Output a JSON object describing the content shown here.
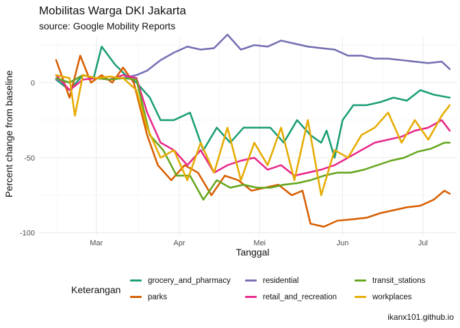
{
  "header": {
    "title": "Mobilitas Warga DKI Jakarta",
    "subtitle": "source: Google Mobility Reports"
  },
  "caption": "ikanx101.github.io",
  "legend": {
    "title": "Keterangan",
    "position": "bottom"
  },
  "chart_data": {
    "type": "line",
    "title": "Mobilitas Warga DKI Jakarta",
    "subtitle": "source: Google Mobility Reports",
    "xlabel": "Tanggal",
    "ylabel": "Percent change from baseline",
    "x_ticks": [
      "Mar",
      "Apr",
      "Mei",
      "Jun",
      "Jul"
    ],
    "x_tick_dates": [
      "2020-03-01",
      "2020-04-01",
      "2020-05-01",
      "2020-06-01",
      "2020-07-01"
    ],
    "x_range": [
      "2020-02-15",
      "2020-07-11"
    ],
    "y_ticks": [
      0,
      -50,
      -100
    ],
    "ylim": [
      -102,
      30
    ],
    "grid": true,
    "series": [
      {
        "name": "grocery_and_pharmacy",
        "color": "#1b9e77",
        "dates": [
          "2020-02-15",
          "2020-02-20",
          "2020-02-25",
          "2020-02-29",
          "2020-03-03",
          "2020-03-08",
          "2020-03-12",
          "2020-03-16",
          "2020-03-21",
          "2020-03-25",
          "2020-03-30",
          "2020-04-05",
          "2020-04-10",
          "2020-04-15",
          "2020-04-20",
          "2020-04-25",
          "2020-04-30",
          "2020-05-05",
          "2020-05-10",
          "2020-05-15",
          "2020-05-20",
          "2020-05-24",
          "2020-05-26",
          "2020-05-29",
          "2020-06-01",
          "2020-06-05",
          "2020-06-10",
          "2020-06-15",
          "2020-06-20",
          "2020-06-25",
          "2020-06-30",
          "2020-07-05",
          "2020-07-11"
        ],
        "values": [
          2,
          -5,
          5,
          3,
          24,
          12,
          5,
          0,
          -10,
          -25,
          -25,
          -20,
          -45,
          -30,
          -40,
          -30,
          -30,
          -30,
          -40,
          -25,
          -35,
          -40,
          -32,
          -50,
          -25,
          -15,
          -15,
          -13,
          -10,
          -12,
          -5,
          -8,
          -10
        ]
      },
      {
        "name": "parks",
        "color": "#d95f02",
        "dates": [
          "2020-02-15",
          "2020-02-20",
          "2020-02-24",
          "2020-02-28",
          "2020-03-03",
          "2020-03-07",
          "2020-03-11",
          "2020-03-15",
          "2020-03-20",
          "2020-03-24",
          "2020-03-29",
          "2020-04-03",
          "2020-04-08",
          "2020-04-13",
          "2020-04-18",
          "2020-04-23",
          "2020-04-28",
          "2020-05-03",
          "2020-05-08",
          "2020-05-13",
          "2020-05-17",
          "2020-05-20",
          "2020-05-25",
          "2020-05-30",
          "2020-06-05",
          "2020-06-10",
          "2020-06-15",
          "2020-06-20",
          "2020-06-25",
          "2020-06-30",
          "2020-07-05",
          "2020-07-09",
          "2020-07-11"
        ],
        "values": [
          15,
          -10,
          18,
          0,
          5,
          0,
          10,
          0,
          -35,
          -55,
          -65,
          -55,
          -60,
          -75,
          -62,
          -65,
          -72,
          -70,
          -68,
          -75,
          -72,
          -94,
          -96,
          -92,
          -91,
          -90,
          -87,
          -85,
          -83,
          -82,
          -78,
          -72,
          -74
        ]
      },
      {
        "name": "residential",
        "color": "#7570b3",
        "dates": [
          "2020-02-15",
          "2020-02-20",
          "2020-02-25",
          "2020-03-01",
          "2020-03-06",
          "2020-03-11",
          "2020-03-16",
          "2020-03-20",
          "2020-03-25",
          "2020-03-30",
          "2020-04-04",
          "2020-04-09",
          "2020-04-14",
          "2020-04-19",
          "2020-04-24",
          "2020-04-29",
          "2020-05-04",
          "2020-05-09",
          "2020-05-14",
          "2020-05-19",
          "2020-05-24",
          "2020-05-29",
          "2020-06-03",
          "2020-06-08",
          "2020-06-13",
          "2020-06-18",
          "2020-06-23",
          "2020-06-28",
          "2020-07-03",
          "2020-07-08",
          "2020-07-11"
        ],
        "values": [
          2,
          0,
          5,
          3,
          2,
          3,
          5,
          8,
          15,
          20,
          24,
          22,
          23,
          32,
          22,
          25,
          24,
          28,
          26,
          24,
          23,
          22,
          18,
          18,
          16,
          16,
          15,
          14,
          13,
          14,
          9
        ]
      },
      {
        "name": "retail_and_recreation",
        "color": "#e7298a",
        "dates": [
          "2020-02-15",
          "2020-02-20",
          "2020-02-25",
          "2020-03-01",
          "2020-03-06",
          "2020-03-11",
          "2020-03-16",
          "2020-03-20",
          "2020-03-25",
          "2020-03-30",
          "2020-04-04",
          "2020-04-09",
          "2020-04-14",
          "2020-04-19",
          "2020-04-24",
          "2020-04-29",
          "2020-05-04",
          "2020-05-09",
          "2020-05-14",
          "2020-05-19",
          "2020-05-24",
          "2020-05-29",
          "2020-06-03",
          "2020-06-08",
          "2020-06-13",
          "2020-06-18",
          "2020-06-23",
          "2020-06-28",
          "2020-07-03",
          "2020-07-08",
          "2020-07-11"
        ],
        "values": [
          5,
          -5,
          2,
          3,
          2,
          5,
          3,
          -20,
          -40,
          -45,
          -55,
          -45,
          -60,
          -55,
          -52,
          -50,
          -58,
          -55,
          -62,
          -60,
          -58,
          -55,
          -50,
          -45,
          -40,
          -38,
          -36,
          -32,
          -30,
          -25,
          -32
        ]
      },
      {
        "name": "transit_stations",
        "color": "#66a61e",
        "dates": [
          "2020-02-15",
          "2020-02-20",
          "2020-02-25",
          "2020-03-01",
          "2020-03-06",
          "2020-03-11",
          "2020-03-16",
          "2020-03-21",
          "2020-03-26",
          "2020-03-31",
          "2020-04-05",
          "2020-04-10",
          "2020-04-15",
          "2020-04-20",
          "2020-04-25",
          "2020-04-30",
          "2020-05-05",
          "2020-05-10",
          "2020-05-15",
          "2020-05-20",
          "2020-05-25",
          "2020-05-30",
          "2020-06-04",
          "2020-06-09",
          "2020-06-14",
          "2020-06-19",
          "2020-06-24",
          "2020-06-29",
          "2020-07-04",
          "2020-07-09",
          "2020-07-11"
        ],
        "values": [
          3,
          0,
          5,
          3,
          2,
          3,
          2,
          -35,
          -45,
          -62,
          -62,
          -78,
          -65,
          -70,
          -68,
          -70,
          -70,
          -68,
          -67,
          -65,
          -62,
          -60,
          -60,
          -58,
          -55,
          -52,
          -50,
          -46,
          -44,
          -40,
          -40
        ]
      },
      {
        "name": "workplaces",
        "color": "#e6ab02",
        "dates": [
          "2020-02-15",
          "2020-02-20",
          "2020-02-22",
          "2020-02-25",
          "2020-03-01",
          "2020-03-06",
          "2020-03-11",
          "2020-03-16",
          "2020-03-20",
          "2020-03-25",
          "2020-03-30",
          "2020-04-04",
          "2020-04-09",
          "2020-04-14",
          "2020-04-19",
          "2020-04-24",
          "2020-04-29",
          "2020-05-04",
          "2020-05-09",
          "2020-05-14",
          "2020-05-19",
          "2020-05-24",
          "2020-05-29",
          "2020-06-03",
          "2020-06-08",
          "2020-06-13",
          "2020-06-18",
          "2020-06-23",
          "2020-06-28",
          "2020-07-03",
          "2020-07-08",
          "2020-07-11"
        ],
        "values": [
          5,
          3,
          -22,
          5,
          3,
          4,
          3,
          -5,
          -30,
          -50,
          -45,
          -65,
          -40,
          -60,
          -30,
          -65,
          -40,
          -55,
          -30,
          -65,
          -25,
          -75,
          -45,
          -50,
          -35,
          -30,
          -20,
          -40,
          -25,
          -38,
          -22,
          -15
        ]
      }
    ]
  }
}
